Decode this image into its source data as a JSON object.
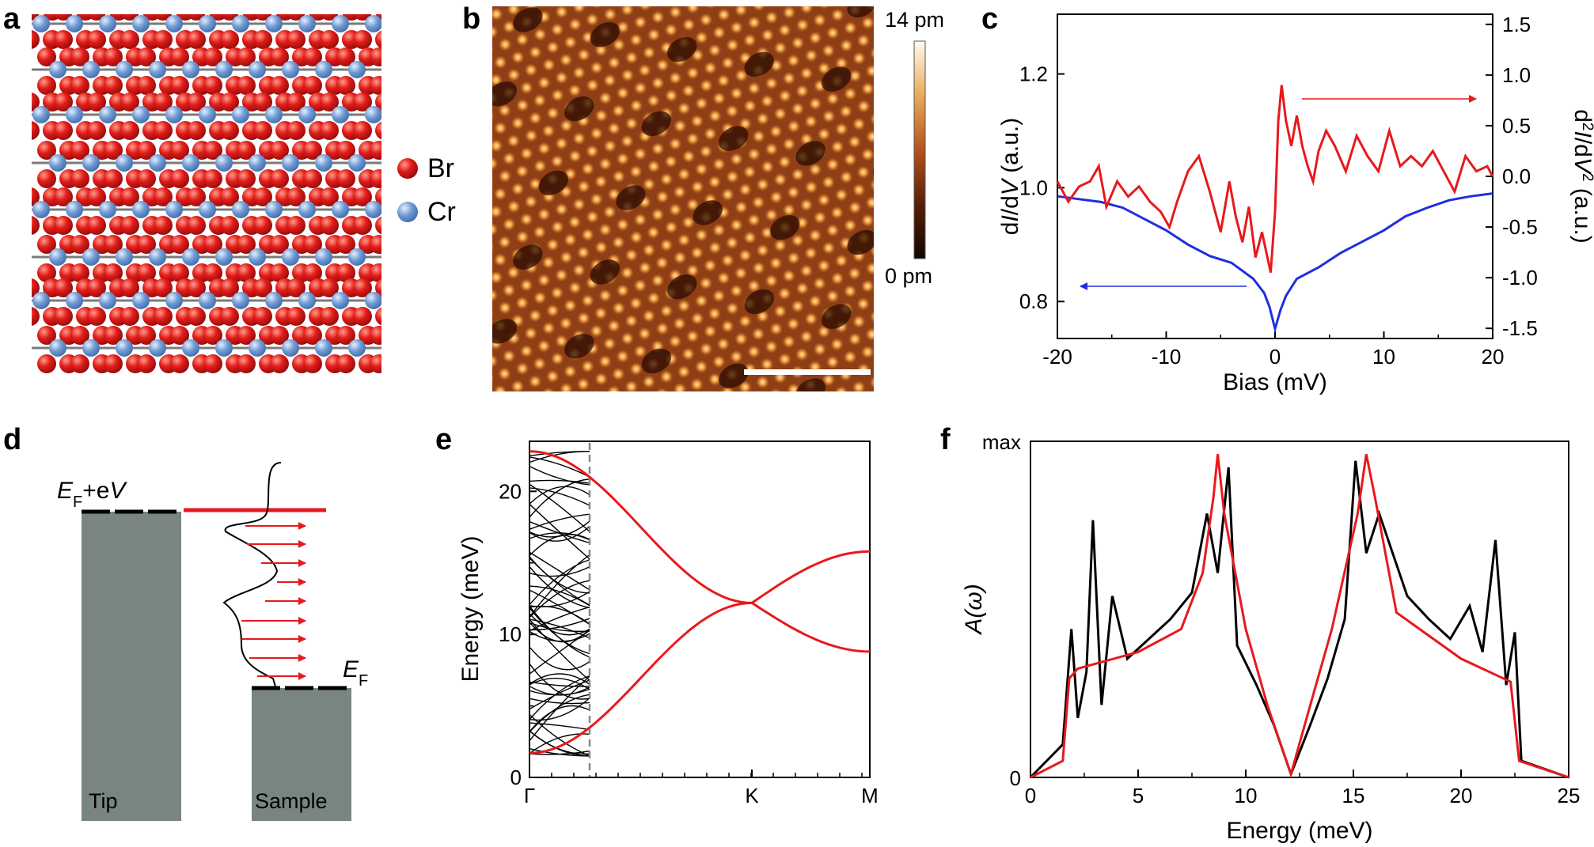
{
  "colors": {
    "br_atom": "#dd1111",
    "cr_atom": "#6a9ad6",
    "bond": "#7a7a7a",
    "red_curve": "#e8191c",
    "blue_curve": "#1f2ee0",
    "block": "#788580"
  },
  "panels": {
    "a": {
      "label": "a",
      "legend": [
        {
          "symbol": "Br",
          "color": "#dd1111"
        },
        {
          "symbol": "Cr",
          "color": "#6a9ad6"
        }
      ]
    },
    "b": {
      "label": "b",
      "colorbar_max": "14 pm",
      "colorbar_min": "0 pm"
    },
    "c": {
      "label": "c"
    },
    "d": {
      "label": "d",
      "level_top": {
        "pre": "E",
        "sub": "F",
        "post": "+e",
        "post_italic": "V"
      },
      "level_bottom": {
        "pre": "E",
        "sub": "F"
      },
      "tip_label": "Tip",
      "sample_label": "Sample"
    },
    "e": {
      "label": "e"
    },
    "f": {
      "label": "f"
    }
  },
  "chart_data": [
    {
      "panel": "c",
      "type": "line",
      "xlabel": "Bias (mV)",
      "ylabel_left": {
        "a": "d",
        "b": "I",
        "c": "/d",
        "d": "V",
        "e": " (a.u.)"
      },
      "ylabel_right": {
        "a": "d",
        "sup": "2",
        "b": "I",
        "c": "/d",
        "d": "V",
        "sup2": "2",
        "e": " (a.u.)"
      },
      "xlim": [
        -20,
        20
      ],
      "ylim_left": [
        0.735,
        1.305
      ],
      "ylim_right": [
        -1.6,
        1.6
      ],
      "xticks": [
        "-20",
        "-10",
        "0",
        "10",
        "20"
      ],
      "yticks_left": [
        "0.8",
        "1.0",
        "1.2"
      ],
      "yticks_right": [
        "-1.5",
        "-1.0",
        "-0.5",
        "0.0",
        "0.5",
        "1.0",
        "1.5"
      ],
      "series": [
        {
          "name": "dI/dV",
          "axis": "left",
          "color": "#1f2ee0",
          "x": [
            -20,
            -18,
            -16,
            -14,
            -12,
            -10,
            -8,
            -6,
            -4,
            -2,
            -1,
            -0.5,
            0,
            0.5,
            1,
            2,
            4,
            6,
            8,
            10,
            12,
            14,
            16,
            18,
            20
          ],
          "y": [
            0.985,
            0.98,
            0.975,
            0.965,
            0.945,
            0.925,
            0.9,
            0.88,
            0.868,
            0.84,
            0.815,
            0.79,
            0.752,
            0.785,
            0.81,
            0.84,
            0.86,
            0.885,
            0.905,
            0.925,
            0.95,
            0.965,
            0.978,
            0.985,
            0.99
          ]
        },
        {
          "name": "d2I/dV2",
          "axis": "right",
          "color": "#e8191c",
          "x": [
            -20,
            -19,
            -18,
            -17,
            -16.2,
            -15.5,
            -14.5,
            -13.5,
            -12.5,
            -11.5,
            -10.5,
            -9.7,
            -9,
            -8,
            -7,
            -6,
            -5,
            -4.2,
            -3.6,
            -3,
            -2.4,
            -1.8,
            -1.2,
            -0.8,
            -0.4,
            0,
            0.3,
            0.6,
            1,
            1.5,
            2,
            2.5,
            3,
            3.5,
            4,
            4.7,
            5.5,
            6.5,
            7.5,
            8.5,
            9.5,
            10.5,
            11.5,
            12.5,
            13.5,
            14.5,
            15.5,
            16.5,
            17.5,
            18.5,
            19.5,
            20
          ],
          "y": [
            -0.05,
            -0.25,
            -0.1,
            -0.05,
            0.1,
            -0.3,
            -0.05,
            -0.2,
            -0.1,
            -0.25,
            -0.35,
            -0.5,
            -0.25,
            0.05,
            0.2,
            -0.15,
            -0.55,
            -0.05,
            -0.4,
            -0.65,
            -0.3,
            -0.8,
            -0.55,
            -0.75,
            -0.95,
            -0.35,
            0.55,
            0.9,
            0.55,
            0.3,
            0.6,
            0.3,
            0.1,
            -0.05,
            0.25,
            0.45,
            0.3,
            0.05,
            0.4,
            0.2,
            0.05,
            0.45,
            0.1,
            0.2,
            0.1,
            0.25,
            0.05,
            -0.15,
            0.2,
            0.05,
            0.1,
            0.0
          ]
        }
      ],
      "annotations": [
        {
          "arrow": "left",
          "color": "#1f2ee0",
          "points_to": "left axis"
        },
        {
          "arrow": "right",
          "color": "#e8191c",
          "points_to": "right axis"
        }
      ]
    },
    {
      "panel": "e",
      "type": "line",
      "ylabel": "Energy (meV)",
      "ylim": [
        0,
        23.5
      ],
      "yticks": [
        "0",
        "10",
        "20"
      ],
      "xticks": [
        "Γ",
        "K",
        "M"
      ],
      "series": [
        {
          "name": "lower magnon band",
          "color": "#e8191c",
          "k": [
            "Γ",
            "K",
            "M"
          ],
          "y": [
            1.7,
            12.2,
            15.8
          ]
        },
        {
          "name": "upper magnon band",
          "color": "#e8191c",
          "k": [
            "Γ",
            "K",
            "M"
          ],
          "y": [
            22.8,
            12.2,
            8.8
          ]
        }
      ]
    },
    {
      "panel": "f",
      "type": "line",
      "xlabel": "Energy (meV)",
      "ylabel": "A(ω)",
      "xlim": [
        0,
        25
      ],
      "xticks": [
        "0",
        "5",
        "10",
        "15",
        "20",
        "25"
      ],
      "ytick_top": "max",
      "ytick_bottom": "0",
      "series": [
        {
          "name": "red spectral function",
          "color": "#e8191c",
          "x": [
            0,
            1.5,
            1.8,
            2.2,
            5,
            7,
            8,
            8.5,
            8.7,
            9,
            10,
            11,
            12.1,
            13,
            14,
            15.2,
            15.6,
            16,
            17,
            20,
            22.3,
            22.7,
            25
          ],
          "y": [
            0,
            0.05,
            0.3,
            0.33,
            0.38,
            0.45,
            0.62,
            0.85,
            0.98,
            0.8,
            0.45,
            0.22,
            0.01,
            0.22,
            0.45,
            0.8,
            0.98,
            0.85,
            0.5,
            0.36,
            0.29,
            0.05,
            0
          ]
        },
        {
          "name": "black spectral function",
          "color": "#000000",
          "x": [
            0,
            1.5,
            1.9,
            2.2,
            2.6,
            2.9,
            3.3,
            3.8,
            4.5,
            5.5,
            6.5,
            7.5,
            8.2,
            8.7,
            9.2,
            9.6,
            10.5,
            11.3,
            12.1,
            13,
            13.8,
            14.6,
            15.1,
            15.6,
            16.2,
            17.5,
            18.5,
            19.5,
            20.4,
            21,
            21.6,
            22.1,
            22.5,
            22.8,
            25
          ],
          "y": [
            0,
            0.1,
            0.45,
            0.18,
            0.32,
            0.78,
            0.22,
            0.55,
            0.36,
            0.42,
            0.48,
            0.56,
            0.8,
            0.62,
            0.94,
            0.4,
            0.28,
            0.16,
            0.01,
            0.16,
            0.3,
            0.48,
            0.96,
            0.68,
            0.8,
            0.55,
            0.48,
            0.42,
            0.52,
            0.38,
            0.72,
            0.28,
            0.44,
            0.05,
            0
          ]
        }
      ]
    }
  ]
}
